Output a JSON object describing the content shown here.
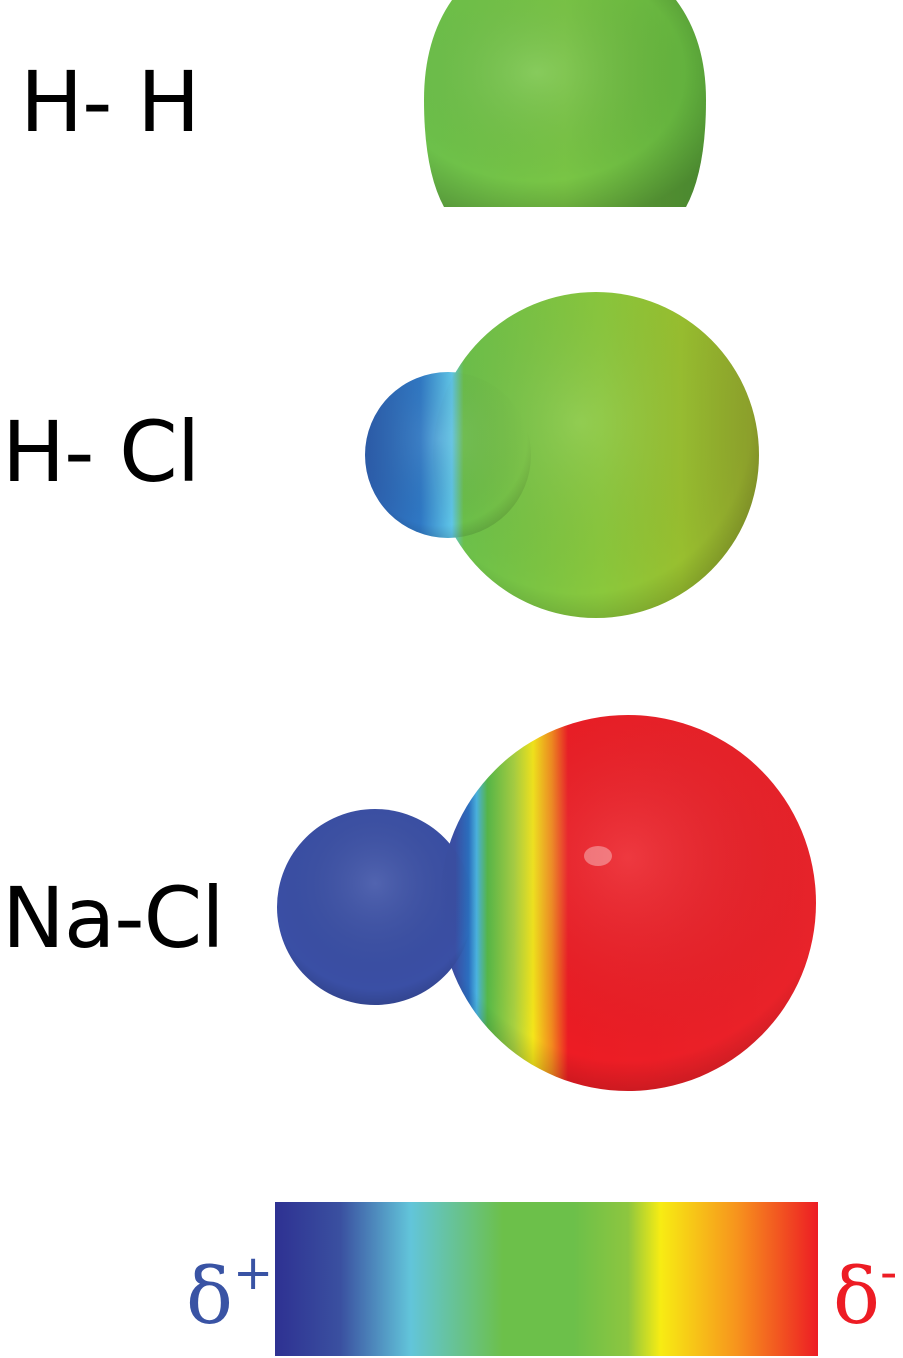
{
  "molecules": [
    {
      "label": "H- H",
      "charge_distribution": "uniform-green"
    },
    {
      "label": "H- Cl",
      "charge_distribution": "blue-to-green"
    },
    {
      "label": "Na-Cl",
      "charge_distribution": "blue-to-red"
    }
  ],
  "scale": {
    "positive_symbol": "δ",
    "positive_sup": "+",
    "negative_symbol": "δ",
    "negative_sup": "-",
    "colors": {
      "positive": "#2e3192",
      "neutral": "#6cc04a",
      "negative": "#ed1c24"
    }
  }
}
